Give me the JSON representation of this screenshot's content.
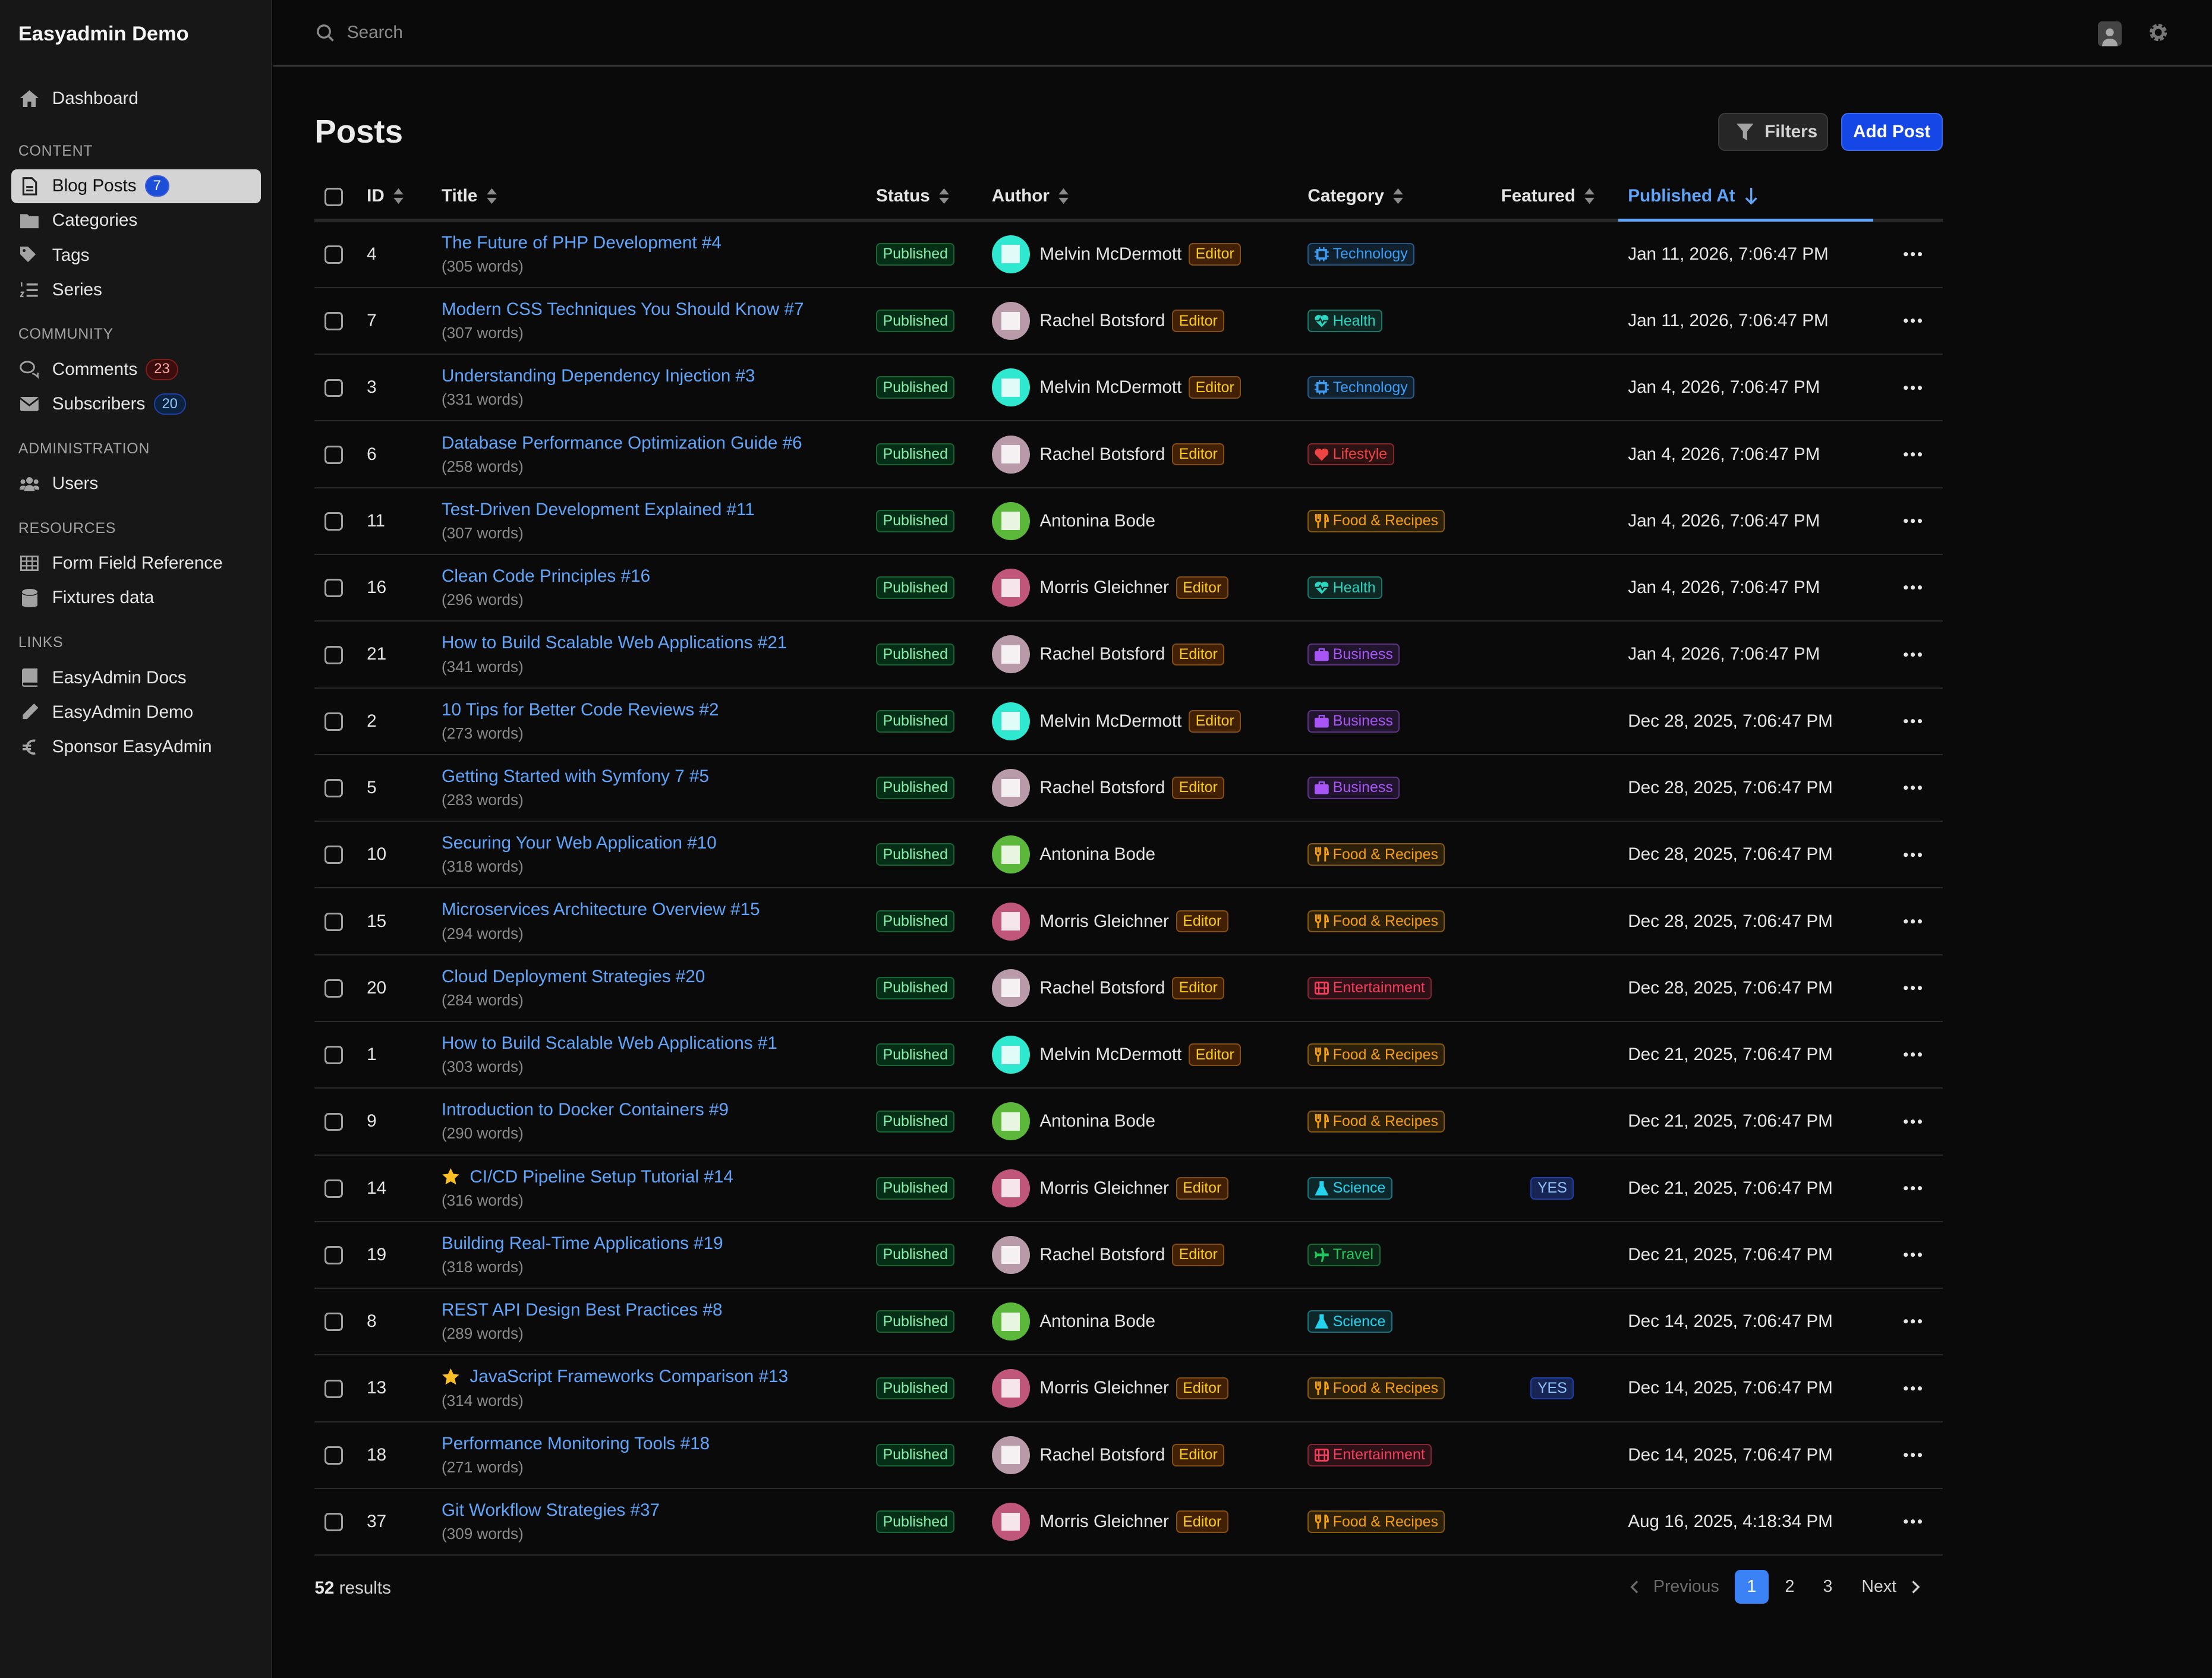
{
  "app": {
    "title": "Easyadmin Demo"
  },
  "sidebar": {
    "dashboard": "Dashboard",
    "sections": [
      {
        "label": "CONTENT",
        "items": [
          {
            "label": "Blog Posts",
            "count": "7",
            "icon": "file-icon",
            "active": true
          },
          {
            "label": "Categories",
            "icon": "folder-icon"
          },
          {
            "label": "Tags",
            "icon": "tags-icon"
          },
          {
            "label": "Series",
            "icon": "list-ol-icon"
          }
        ]
      },
      {
        "label": "COMMUNITY",
        "items": [
          {
            "label": "Comments",
            "count": "23",
            "icon": "comments-icon"
          },
          {
            "label": "Subscribers",
            "count": "20",
            "icon": "envelope-icon"
          }
        ]
      },
      {
        "label": "ADMINISTRATION",
        "items": [
          {
            "label": "Users",
            "icon": "users-icon"
          }
        ]
      },
      {
        "label": "RESOURCES",
        "items": [
          {
            "label": "Form Field Reference",
            "icon": "table-icon"
          },
          {
            "label": "Fixtures data",
            "icon": "database-icon"
          }
        ]
      },
      {
        "label": "LINKS",
        "items": [
          {
            "label": "EasyAdmin Docs",
            "icon": "book-icon"
          },
          {
            "label": "EasyAdmin Demo",
            "icon": "pen-icon"
          },
          {
            "label": "Sponsor EasyAdmin",
            "icon": "euro-icon"
          }
        ]
      }
    ]
  },
  "search": {
    "placeholder": "Search"
  },
  "page": {
    "title": "Posts",
    "filters_label": "Filters",
    "add_label": "Add Post"
  },
  "table": {
    "columns": {
      "id": "ID",
      "title": "Title",
      "status": "Status",
      "author": "Author",
      "category": "Category",
      "featured": "Featured",
      "published": "Published At"
    },
    "sorted_column": "published",
    "sort_direction": "desc",
    "rows": [
      {
        "id": "4",
        "title": "The Future of PHP Development #4",
        "words": "(305 words)",
        "status": "Published",
        "author": "Melvin McDermott",
        "role": "Editor",
        "category": "Technology",
        "featured": "",
        "date": "Jan 11, 2026, 7:06:47 PM"
      },
      {
        "id": "7",
        "title": "Modern CSS Techniques You Should Know #7",
        "words": "(307 words)",
        "status": "Published",
        "author": "Rachel Botsford",
        "role": "Editor",
        "category": "Health",
        "featured": "",
        "date": "Jan 11, 2026, 7:06:47 PM"
      },
      {
        "id": "3",
        "title": "Understanding Dependency Injection #3",
        "words": "(331 words)",
        "status": "Published",
        "author": "Melvin McDermott",
        "role": "Editor",
        "category": "Technology",
        "featured": "",
        "date": "Jan 4, 2026, 7:06:47 PM"
      },
      {
        "id": "6",
        "title": "Database Performance Optimization Guide #6",
        "words": "(258 words)",
        "status": "Published",
        "author": "Rachel Botsford",
        "role": "Editor",
        "category": "Lifestyle",
        "featured": "",
        "date": "Jan 4, 2026, 7:06:47 PM"
      },
      {
        "id": "11",
        "title": "Test-Driven Development Explained #11",
        "words": "(307 words)",
        "status": "Published",
        "author": "Antonina Bode",
        "role": "",
        "category": "Food & Recipes",
        "featured": "",
        "date": "Jan 4, 2026, 7:06:47 PM"
      },
      {
        "id": "16",
        "title": "Clean Code Principles #16",
        "words": "(296 words)",
        "status": "Published",
        "author": "Morris Gleichner",
        "role": "Editor",
        "category": "Health",
        "featured": "",
        "date": "Jan 4, 2026, 7:06:47 PM"
      },
      {
        "id": "21",
        "title": "How to Build Scalable Web Applications #21",
        "words": "(341 words)",
        "status": "Published",
        "author": "Rachel Botsford",
        "role": "Editor",
        "category": "Business",
        "featured": "",
        "date": "Jan 4, 2026, 7:06:47 PM"
      },
      {
        "id": "2",
        "title": "10 Tips for Better Code Reviews #2",
        "words": "(273 words)",
        "status": "Published",
        "author": "Melvin McDermott",
        "role": "Editor",
        "category": "Business",
        "featured": "",
        "date": "Dec 28, 2025, 7:06:47 PM"
      },
      {
        "id": "5",
        "title": "Getting Started with Symfony 7 #5",
        "words": "(283 words)",
        "status": "Published",
        "author": "Rachel Botsford",
        "role": "Editor",
        "category": "Business",
        "featured": "",
        "date": "Dec 28, 2025, 7:06:47 PM"
      },
      {
        "id": "10",
        "title": "Securing Your Web Application #10",
        "words": "(318 words)",
        "status": "Published",
        "author": "Antonina Bode",
        "role": "",
        "category": "Food & Recipes",
        "featured": "",
        "date": "Dec 28, 2025, 7:06:47 PM"
      },
      {
        "id": "15",
        "title": "Microservices Architecture Overview #15",
        "words": "(294 words)",
        "status": "Published",
        "author": "Morris Gleichner",
        "role": "Editor",
        "category": "Food & Recipes",
        "featured": "",
        "date": "Dec 28, 2025, 7:06:47 PM"
      },
      {
        "id": "20",
        "title": "Cloud Deployment Strategies #20",
        "words": "(284 words)",
        "status": "Published",
        "author": "Rachel Botsford",
        "role": "Editor",
        "category": "Entertainment",
        "featured": "",
        "date": "Dec 28, 2025, 7:06:47 PM"
      },
      {
        "id": "1",
        "title": "How to Build Scalable Web Applications #1",
        "words": "(303 words)",
        "status": "Published",
        "author": "Melvin McDermott",
        "role": "Editor",
        "category": "Food & Recipes",
        "featured": "",
        "date": "Dec 21, 2025, 7:06:47 PM"
      },
      {
        "id": "9",
        "title": "Introduction to Docker Containers #9",
        "words": "(290 words)",
        "status": "Published",
        "author": "Antonina Bode",
        "role": "",
        "category": "Food & Recipes",
        "featured": "",
        "date": "Dec 21, 2025, 7:06:47 PM"
      },
      {
        "id": "14",
        "title": "CI/CD Pipeline Setup Tutorial #14",
        "words": "(316 words)",
        "status": "Published",
        "author": "Morris Gleichner",
        "role": "Editor",
        "category": "Science",
        "featured": "YES",
        "star": true,
        "date": "Dec 21, 2025, 7:06:47 PM"
      },
      {
        "id": "19",
        "title": "Building Real-Time Applications #19",
        "words": "(318 words)",
        "status": "Published",
        "author": "Rachel Botsford",
        "role": "Editor",
        "category": "Travel",
        "featured": "",
        "date": "Dec 21, 2025, 7:06:47 PM"
      },
      {
        "id": "8",
        "title": "REST API Design Best Practices #8",
        "words": "(289 words)",
        "status": "Published",
        "author": "Antonina Bode",
        "role": "",
        "category": "Science",
        "featured": "",
        "date": "Dec 14, 2025, 7:06:47 PM"
      },
      {
        "id": "13",
        "title": "JavaScript Frameworks Comparison #13",
        "words": "(314 words)",
        "status": "Published",
        "author": "Morris Gleichner",
        "role": "Editor",
        "category": "Food & Recipes",
        "featured": "YES",
        "star": true,
        "date": "Dec 14, 2025, 7:06:47 PM"
      },
      {
        "id": "18",
        "title": "Performance Monitoring Tools #18",
        "words": "(271 words)",
        "status": "Published",
        "author": "Rachel Botsford",
        "role": "Editor",
        "category": "Entertainment",
        "featured": "",
        "date": "Dec 14, 2025, 7:06:47 PM"
      },
      {
        "id": "37",
        "title": "Git Workflow Strategies #37",
        "words": "(309 words)",
        "status": "Published",
        "author": "Morris Gleichner",
        "role": "Editor",
        "category": "Food & Recipes",
        "featured": "",
        "date": "Aug 16, 2025, 4:18:34 PM"
      }
    ]
  },
  "category_colors": {
    "Technology": "#3b9ef6",
    "Health": "#2dd4bf",
    "Lifestyle": "#ef4444",
    "Food & Recipes": "#f59e0b",
    "Business": "#a855f7",
    "Entertainment": "#f43f5e",
    "Science": "#22d3ee",
    "Travel": "#22c55e"
  },
  "avatar_colors": {
    "Melvin McDermott": "#2ee8d0",
    "Rachel Botsford": "#b89aa8",
    "Antonina Bode": "#5cb83a",
    "Morris Gleichner": "#c0577a"
  },
  "footer": {
    "results_count": "52",
    "results_label": "results",
    "previous": "Previous",
    "next": "Next",
    "pages": [
      "1",
      "2",
      "3"
    ],
    "current_page": "1"
  }
}
